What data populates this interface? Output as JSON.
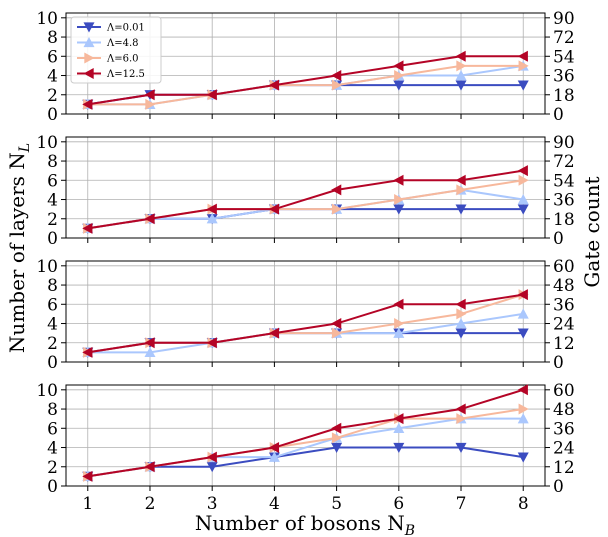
{
  "chart_data": {
    "type": "line",
    "x": [
      1,
      2,
      3,
      4,
      5,
      6,
      7,
      8
    ],
    "xlabel": "Number of bosons N_B",
    "ylabel": "Number of layers N_L",
    "ylabel_right": "Gate count",
    "series_names": [
      "Λ=0.01",
      "Λ=4.8",
      "Λ=6.0",
      "Λ=12.5"
    ],
    "colors": [
      "#3b4cc0",
      "#aac7fd",
      "#f7b89c",
      "#b40426"
    ],
    "markers": [
      "triangle-down",
      "triangle-up",
      "triangle-right",
      "triangle-left"
    ],
    "legend": "upper-left of top panel",
    "grid": true,
    "panels": [
      {
        "ylim": [
          0,
          10.5
        ],
        "yticks": [
          0,
          2,
          4,
          6,
          8,
          10
        ],
        "right_yticks": [
          0,
          18,
          36,
          54,
          72,
          90
        ],
        "right_ylim": [
          0,
          94.5
        ],
        "series": [
          {
            "name": "Λ=0.01",
            "values": [
              1,
              2,
              2,
              3,
              3,
              3,
              3,
              3
            ]
          },
          {
            "name": "Λ=4.8",
            "values": [
              1,
              1,
              2,
              3,
              3,
              4,
              4,
              5
            ]
          },
          {
            "name": "Λ=6.0",
            "values": [
              1,
              1,
              2,
              3,
              3,
              4,
              5,
              5
            ]
          },
          {
            "name": "Λ=12.5",
            "values": [
              1,
              2,
              2,
              3,
              4,
              5,
              6,
              6
            ]
          }
        ]
      },
      {
        "ylim": [
          0,
          10.5
        ],
        "yticks": [
          0,
          2,
          4,
          6,
          8,
          10
        ],
        "right_yticks": [
          0,
          18,
          36,
          54,
          72,
          90
        ],
        "right_ylim": [
          0,
          94.5
        ],
        "series": [
          {
            "name": "Λ=0.01",
            "values": [
              1,
              2,
              2,
              3,
              3,
              3,
              3,
              3
            ]
          },
          {
            "name": "Λ=4.8",
            "values": [
              1,
              2,
              2,
              3,
              3,
              4,
              5,
              4
            ]
          },
          {
            "name": "Λ=6.0",
            "values": [
              1,
              2,
              3,
              3,
              3,
              4,
              5,
              6
            ]
          },
          {
            "name": "Λ=12.5",
            "values": [
              1,
              2,
              3,
              3,
              5,
              6,
              6,
              7
            ]
          }
        ]
      },
      {
        "ylim": [
          0,
          10.5
        ],
        "yticks": [
          0,
          2,
          4,
          6,
          8,
          10
        ],
        "right_yticks": [
          0,
          12,
          24,
          36,
          48,
          60
        ],
        "right_ylim": [
          0,
          63
        ],
        "series": [
          {
            "name": "Λ=0.01",
            "values": [
              1,
              2,
              2,
              3,
              3,
              3,
              3,
              3
            ]
          },
          {
            "name": "Λ=4.8",
            "values": [
              1,
              1,
              2,
              3,
              3,
              3,
              4,
              5
            ]
          },
          {
            "name": "Λ=6.0",
            "values": [
              1,
              2,
              2,
              3,
              3,
              4,
              5,
              7
            ]
          },
          {
            "name": "Λ=12.5",
            "values": [
              1,
              2,
              2,
              3,
              4,
              6,
              6,
              7
            ]
          }
        ]
      },
      {
        "ylim": [
          0,
          10.5
        ],
        "yticks": [
          0,
          2,
          4,
          6,
          8,
          10
        ],
        "right_yticks": [
          0,
          12,
          24,
          36,
          48,
          60
        ],
        "right_ylim": [
          0,
          63
        ],
        "series": [
          {
            "name": "Λ=0.01",
            "values": [
              1,
              2,
              2,
              3,
              4,
              4,
              4,
              3
            ]
          },
          {
            "name": "Λ=4.8",
            "values": [
              1,
              2,
              3,
              3,
              5,
              6,
              7,
              7
            ]
          },
          {
            "name": "Λ=6.0",
            "values": [
              1,
              2,
              3,
              4,
              5,
              7,
              7,
              8
            ]
          },
          {
            "name": "Λ=12.5",
            "values": [
              1,
              2,
              3,
              4,
              6,
              7,
              8,
              10
            ]
          }
        ]
      }
    ]
  }
}
